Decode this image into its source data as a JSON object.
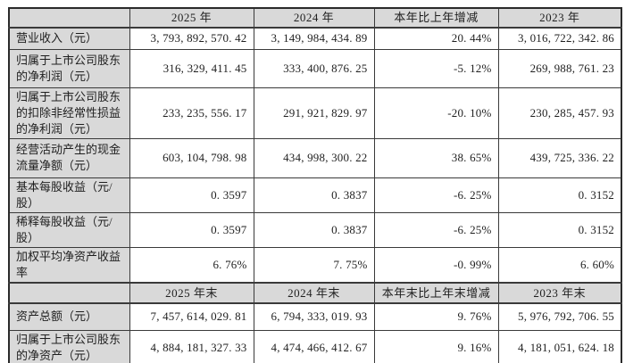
{
  "table": {
    "rows": [
      {
        "type": "header",
        "cells": [
          "",
          "2025 年",
          "2024 年",
          "本年比上年增减",
          "2023 年"
        ]
      },
      {
        "type": "data",
        "cells": [
          "营业收入（元）",
          "3, 793, 892, 570. 42",
          "3, 149, 984, 434. 89",
          "20. 44%",
          "3, 016, 722, 342. 86"
        ]
      },
      {
        "type": "data",
        "cells": [
          "归属于上市公司股东的净利润（元）",
          "316, 329, 411. 45",
          "333, 400, 876. 25",
          "-5. 12%",
          "269, 988, 761. 23"
        ]
      },
      {
        "type": "data",
        "cells": [
          "归属于上市公司股东的扣除非经常性损益的净利润（元）",
          "233, 235, 556. 17",
          "291, 921, 829. 97",
          "-20. 10%",
          "230, 285, 457. 93"
        ]
      },
      {
        "type": "data",
        "cells": [
          "经营活动产生的现金流量净额（元）",
          "603, 104, 798. 98",
          "434, 998, 300. 22",
          "38. 65%",
          "439, 725, 336. 22"
        ]
      },
      {
        "type": "data",
        "cells": [
          "基本每股收益（元/股）",
          "0. 3597",
          "0. 3837",
          "-6. 25%",
          "0. 3152"
        ]
      },
      {
        "type": "data",
        "cells": [
          "稀释每股收益（元/股）",
          "0. 3597",
          "0. 3837",
          "-6. 25%",
          "0. 3152"
        ]
      },
      {
        "type": "data",
        "cells": [
          "加权平均净资产收益率",
          "6. 76%",
          "7. 75%",
          "-0. 99%",
          "6. 60%"
        ]
      },
      {
        "type": "header",
        "cells": [
          "",
          "2025 年末",
          "2024 年末",
          "本年末比上年末增减",
          "2023 年末"
        ]
      },
      {
        "type": "data",
        "cells": [
          "资产总额（元）",
          "7, 457, 614, 029. 81",
          "6, 794, 333, 019. 93",
          "9. 76%",
          "5, 976, 792, 706. 55"
        ]
      },
      {
        "type": "data",
        "cells": [
          "归属于上市公司股东的净资产（元）",
          "4, 884, 181, 327. 33",
          "4, 474, 466, 412. 67",
          "9. 16%",
          "4, 181, 051, 624. 18"
        ]
      }
    ],
    "colors": {
      "header_fill": "#d9d9d9",
      "label_fill": "#d9d9d9",
      "border": "#3a3a3a",
      "text": "#1f1f1f",
      "background": "#ffffff"
    }
  }
}
